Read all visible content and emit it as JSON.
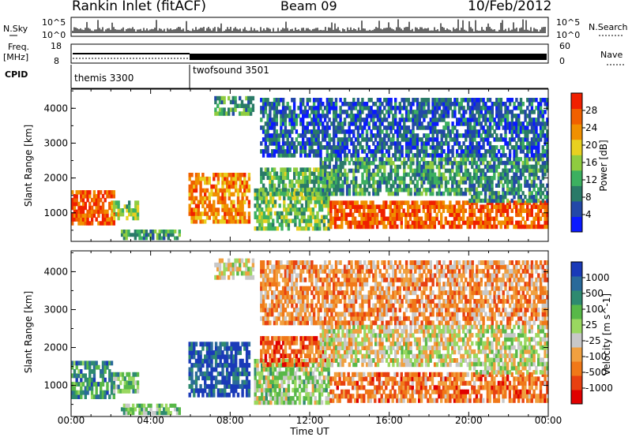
{
  "header": {
    "radar": "Rankin Inlet (fitACF)",
    "beam": "Beam 09",
    "date": "10/Feb/2012"
  },
  "nsky": {
    "label": "N.Sky",
    "ticks": [
      "10^5",
      "10^0"
    ],
    "right_label": "N.Search",
    "right_ticks": [
      "10^5",
      "10^0"
    ]
  },
  "freq": {
    "label": "Freq.",
    "unit": "[MHz]",
    "ticks": [
      "18",
      "8"
    ],
    "right_label": "Nave",
    "right_ticks": [
      "60",
      "0"
    ]
  },
  "cpid": {
    "label": "CPID",
    "modes": [
      {
        "name": "themis 3300",
        "start_hour": 0,
        "end_hour": 6
      },
      {
        "name": "twofsound 3501",
        "start_hour": 6,
        "end_hour": 24
      }
    ]
  },
  "x_axis": {
    "label": "Time UT",
    "ticks": [
      "00:00",
      "04:00",
      "08:00",
      "12:00",
      "16:00",
      "20:00",
      "00:00"
    ]
  },
  "power_panel": {
    "ylabel": "Slant Range [km]",
    "yticks": [
      "1000",
      "2000",
      "3000",
      "4000"
    ],
    "colorbar_label": "Power [dB]",
    "colorbar_ticks": [
      "4",
      "8",
      "12",
      "16",
      "20",
      "24",
      "28"
    ],
    "colors": [
      "#0a1aff",
      "#2348a8",
      "#2a7a68",
      "#3cb060",
      "#8fcc40",
      "#e8d020",
      "#f09000",
      "#f06000",
      "#f02000"
    ]
  },
  "velocity_panel": {
    "ylabel": "Slant Range [km]",
    "yticks": [
      "1000",
      "2000",
      "3000",
      "4000"
    ],
    "colorbar_label": "Velocity [m s^-1]",
    "colorbar_ticks": [
      "1000",
      "500",
      "100",
      "25",
      "-25",
      "-100",
      "-500",
      "-1000"
    ],
    "colors": [
      "#1a3ab8",
      "#2a6a9a",
      "#2e8a70",
      "#58b848",
      "#9ad860",
      "#c8c8c8",
      "#f0a040",
      "#f07818",
      "#e84010",
      "#e00000"
    ]
  },
  "chart_data": [
    {
      "type": "heatmap",
      "name": "power",
      "xlabel": "Time UT",
      "ylabel": "Slant Range [km]",
      "xlim": [
        0,
        24
      ],
      "ylim": [
        180,
        4550
      ],
      "zlabel": "Power [dB]",
      "regions": [
        {
          "t": [
            0.0,
            2.2
          ],
          "r": [
            650,
            1650
          ],
          "level": 0.85
        },
        {
          "t": [
            2.0,
            3.4
          ],
          "r": [
            800,
            1350
          ],
          "level": 0.5
        },
        {
          "t": [
            2.5,
            5.5
          ],
          "r": [
            230,
            520
          ],
          "level": 0.35
        },
        {
          "t": [
            5.9,
            9.0
          ],
          "r": [
            700,
            2150
          ],
          "level": 0.75
        },
        {
          "t": [
            7.2,
            9.2
          ],
          "r": [
            3800,
            4350
          ],
          "level": 0.35
        },
        {
          "t": [
            9.2,
            13.0
          ],
          "r": [
            500,
            1700
          ],
          "level": 0.45
        },
        {
          "t": [
            9.5,
            13.5
          ],
          "r": [
            1500,
            2300
          ],
          "level": 0.4
        },
        {
          "t": [
            13.0,
            24.0
          ],
          "r": [
            550,
            1350
          ],
          "level": 0.85
        },
        {
          "t": [
            12.5,
            20.0
          ],
          "r": [
            1500,
            2600
          ],
          "level": 0.35
        },
        {
          "t": [
            20.0,
            24.0
          ],
          "r": [
            1300,
            2600
          ],
          "level": 0.3
        },
        {
          "t": [
            9.5,
            24.0
          ],
          "r": [
            2600,
            4300
          ],
          "level": 0.2
        }
      ]
    },
    {
      "type": "heatmap",
      "name": "velocity",
      "xlabel": "Time UT",
      "ylabel": "Slant Range [km]",
      "xlim": [
        0,
        24
      ],
      "ylim": [
        180,
        4550
      ],
      "zlabel": "Velocity [m s^-1]",
      "regions": [
        {
          "t": [
            0.0,
            2.2
          ],
          "r": [
            650,
            1650
          ],
          "level": 0.25
        },
        {
          "t": [
            2.0,
            3.4
          ],
          "r": [
            800,
            1350
          ],
          "level": 0.35
        },
        {
          "t": [
            2.5,
            5.5
          ],
          "r": [
            230,
            520
          ],
          "level": 0.4
        },
        {
          "t": [
            5.9,
            9.0
          ],
          "r": [
            700,
            2150
          ],
          "level": 0.1
        },
        {
          "t": [
            7.2,
            9.2
          ],
          "r": [
            3800,
            4350
          ],
          "level": 0.55
        },
        {
          "t": [
            9.2,
            13.0
          ],
          "r": [
            500,
            1700
          ],
          "level": 0.45
        },
        {
          "t": [
            9.5,
            13.5
          ],
          "r": [
            1500,
            2300
          ],
          "level": 0.8
        },
        {
          "t": [
            13.0,
            24.0
          ],
          "r": [
            550,
            1350
          ],
          "level": 0.75
        },
        {
          "t": [
            12.5,
            20.0
          ],
          "r": [
            1500,
            2600
          ],
          "level": 0.55
        },
        {
          "t": [
            20.0,
            24.0
          ],
          "r": [
            1300,
            2600
          ],
          "level": 0.5
        },
        {
          "t": [
            9.5,
            24.0
          ],
          "r": [
            2600,
            4300
          ],
          "level": 0.7
        }
      ]
    }
  ]
}
